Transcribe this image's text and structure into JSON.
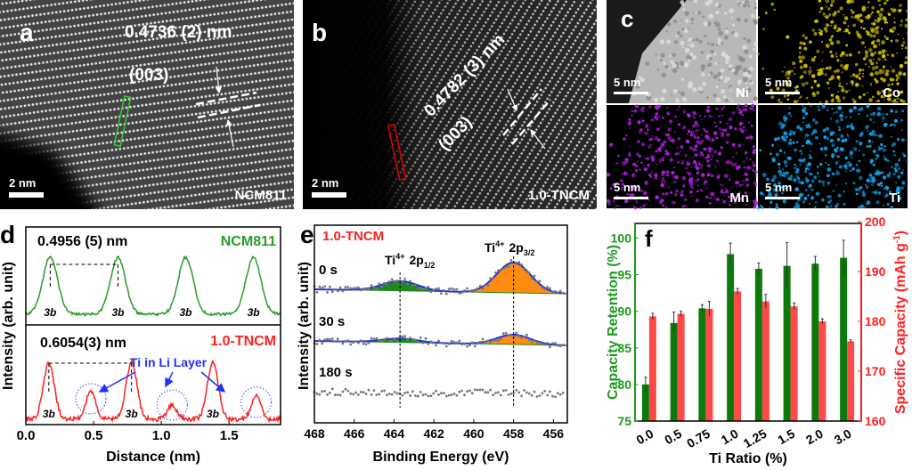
{
  "panels": {
    "a": {
      "label": "a",
      "spacing": "0.4736 (2) nm",
      "plane": "(003)",
      "scalebar": "2 nm",
      "sample": "NCM811",
      "box_color": "#33cc33"
    },
    "b": {
      "label": "b",
      "spacing": "0.4782 (3) nm",
      "plane": "(003)",
      "scalebar": "2 nm",
      "sample": "1.0-TNCM",
      "box_color": "#e00000"
    },
    "c": {
      "label": "c",
      "tiles": [
        {
          "element": "Ni",
          "scalebar": "5 nm",
          "color": "#d0d0d0"
        },
        {
          "element": "Co",
          "scalebar": "5 nm",
          "color": "#d4c400"
        },
        {
          "element": "Mn",
          "scalebar": "5 nm",
          "color": "#b020e0"
        },
        {
          "element": "Ti",
          "scalebar": "5 nm",
          "color": "#10a8f0"
        }
      ]
    }
  },
  "chart_data": [
    {
      "panel": "d",
      "type": "line",
      "xlabel": "Distance (nm)",
      "ylabel": "Intensity (arb. unit)",
      "xlim": [
        0,
        1.88
      ],
      "xticks": [
        "0.0",
        "0.5",
        "1.0",
        "1.5"
      ],
      "series": [
        {
          "name": "NCM811",
          "color": "#2a9a2a",
          "peaks_nm": [
            0.18,
            0.68,
            1.18,
            1.68
          ],
          "peak_label": "3b",
          "annotation": "0.4956 (5) nm"
        },
        {
          "name": "1.0-TNCM",
          "color": "#ff2020",
          "peaks_nm": [
            0.17,
            0.78,
            1.38,
            1.98
          ],
          "minor_peaks_nm": [
            0.48,
            1.08,
            1.7
          ],
          "peak_label": "3b",
          "annotation": "0.6054(3) nm",
          "callout": "Ti in Li Layer"
        }
      ]
    },
    {
      "panel": "e",
      "type": "scatter",
      "title": "1.0-TNCM",
      "xlabel": "Binding Energy (eV)",
      "ylabel": "Intensity (arb. unit)",
      "xlim": [
        468,
        455.3
      ],
      "xticks": [
        "468",
        "466",
        "464",
        "462",
        "460",
        "458",
        "456"
      ],
      "peaks": [
        {
          "label": "Ti",
          "sup": "4+",
          "orbital": "2p",
          "sub": "1/2",
          "position_eV": 463.7,
          "color": "#1e8a1e"
        },
        {
          "label": "Ti",
          "sup": "4+",
          "orbital": "2p",
          "sub": "3/2",
          "position_eV": 458.0,
          "color": "#ff8c10"
        }
      ],
      "spectra": [
        {
          "name": "0 s",
          "amp_2p12": 0.5,
          "amp_2p32": 1.55
        },
        {
          "name": "30 s",
          "amp_2p12": 0.2,
          "amp_2p32": 0.5
        },
        {
          "name": "180 s",
          "amp_2p12": 0,
          "amp_2p32": 0
        }
      ],
      "fit_color": "#2233dd"
    },
    {
      "panel": "f",
      "type": "bar",
      "xlabel": "Ti Ratio (%)",
      "categories": [
        "0.0",
        "0.5",
        "0.75",
        "1.0",
        "1.25",
        "1.5",
        "2.0",
        "3.0"
      ],
      "series": [
        {
          "name": "Capacity Retention (%)",
          "axis": "left",
          "color": "#0b7a0b",
          "values": [
            80.0,
            88.4,
            90.4,
            97.8,
            95.8,
            96.2,
            96.5,
            97.3
          ],
          "errors": [
            1.0,
            1.5,
            0.5,
            1.5,
            0.8,
            3.2,
            1.0,
            2.4
          ]
        },
        {
          "name": "Specific Capacity (mAh g-1)",
          "axis": "right",
          "color": "#ff4848",
          "values": [
            181.0,
            181.5,
            182.5,
            186.0,
            184.0,
            183.0,
            180.0,
            176.0
          ],
          "errors": [
            0.6,
            0.5,
            1.5,
            0.6,
            1.4,
            0.7,
            0.5,
            0.3
          ]
        }
      ],
      "ylabel_left": "Capacity Retention (%)",
      "ylabel_right": "Specific Capacity (mAh g",
      "ylabel_right_sup": "-1",
      "ylabel_right_end": ")",
      "ylim_left": [
        75,
        102
      ],
      "yticks_left": [
        "75",
        "80",
        "85",
        "90",
        "95",
        "100"
      ],
      "ylim_right": [
        160,
        200
      ],
      "yticks_right": [
        "160",
        "170",
        "180",
        "190",
        "200"
      ],
      "left_color": "#1e9a1e",
      "right_color": "#ff2020"
    }
  ]
}
